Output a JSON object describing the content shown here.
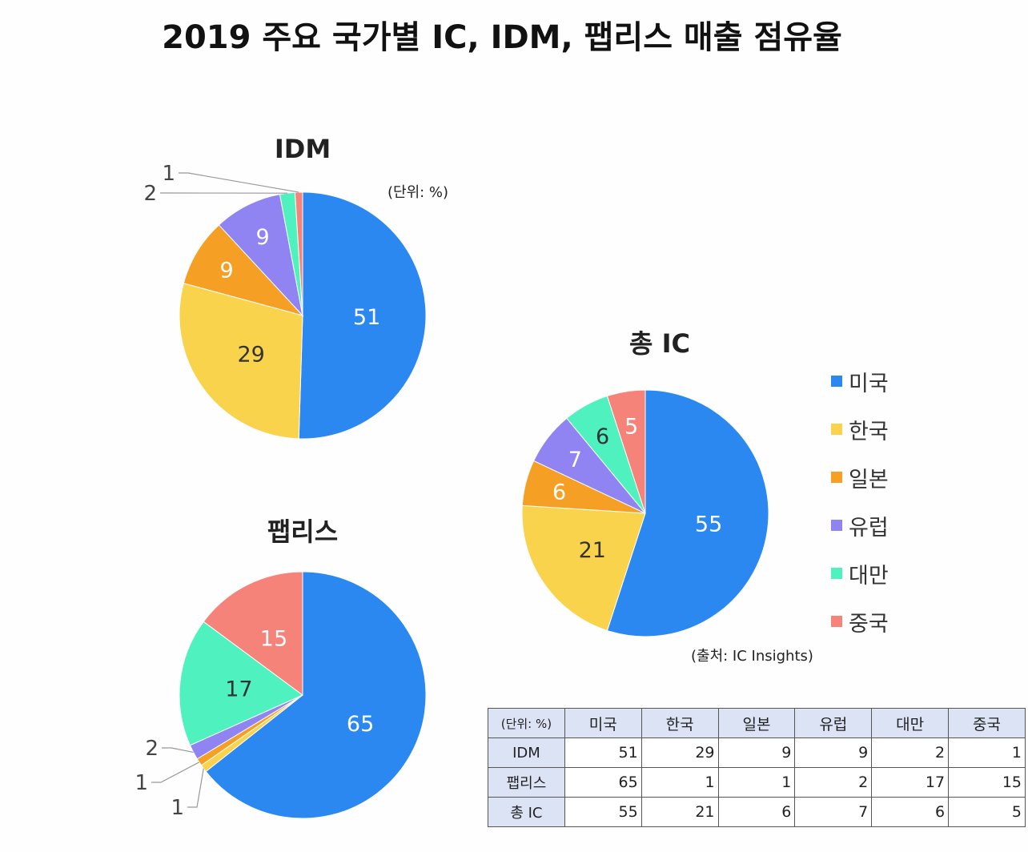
{
  "title": "2019 주요 국가별 IC, IDM, 팹리스 매출 점유율",
  "unit_note": "(단위: %)",
  "source_note": "(출처: IC Insights)",
  "legend": [
    {
      "label": "미국",
      "color": "#2b88f0"
    },
    {
      "label": "한국",
      "color": "#fad34c"
    },
    {
      "label": "일본",
      "color": "#f5a024"
    },
    {
      "label": "유럽",
      "color": "#8f84f2"
    },
    {
      "label": "대만",
      "color": "#4ff2bf"
    },
    {
      "label": "중국",
      "color": "#f5837a"
    }
  ],
  "chart_data": [
    {
      "type": "pie",
      "title": "IDM",
      "categories": [
        "미국",
        "한국",
        "일본",
        "유럽",
        "대만",
        "중국"
      ],
      "values": [
        51,
        29,
        9,
        9,
        2,
        1
      ]
    },
    {
      "type": "pie",
      "title": "팹리스",
      "categories": [
        "미국",
        "한국",
        "일본",
        "유럽",
        "대만",
        "중국"
      ],
      "values": [
        65,
        1,
        1,
        2,
        17,
        15
      ]
    },
    {
      "type": "pie",
      "title": "총 IC",
      "categories": [
        "미국",
        "한국",
        "일본",
        "유럽",
        "대만",
        "중국"
      ],
      "values": [
        55,
        21,
        6,
        7,
        6,
        5
      ]
    }
  ],
  "table": {
    "unit_label": "(단위: %)",
    "columns": [
      "미국",
      "한국",
      "일본",
      "유럽",
      "대만",
      "중국"
    ],
    "rows": [
      {
        "label": "IDM",
        "values": [
          51,
          29,
          9,
          9,
          2,
          1
        ]
      },
      {
        "label": "팹리스",
        "values": [
          65,
          1,
          1,
          2,
          17,
          15
        ]
      },
      {
        "label": "총 IC",
        "values": [
          55,
          21,
          6,
          7,
          6,
          5
        ]
      }
    ]
  }
}
